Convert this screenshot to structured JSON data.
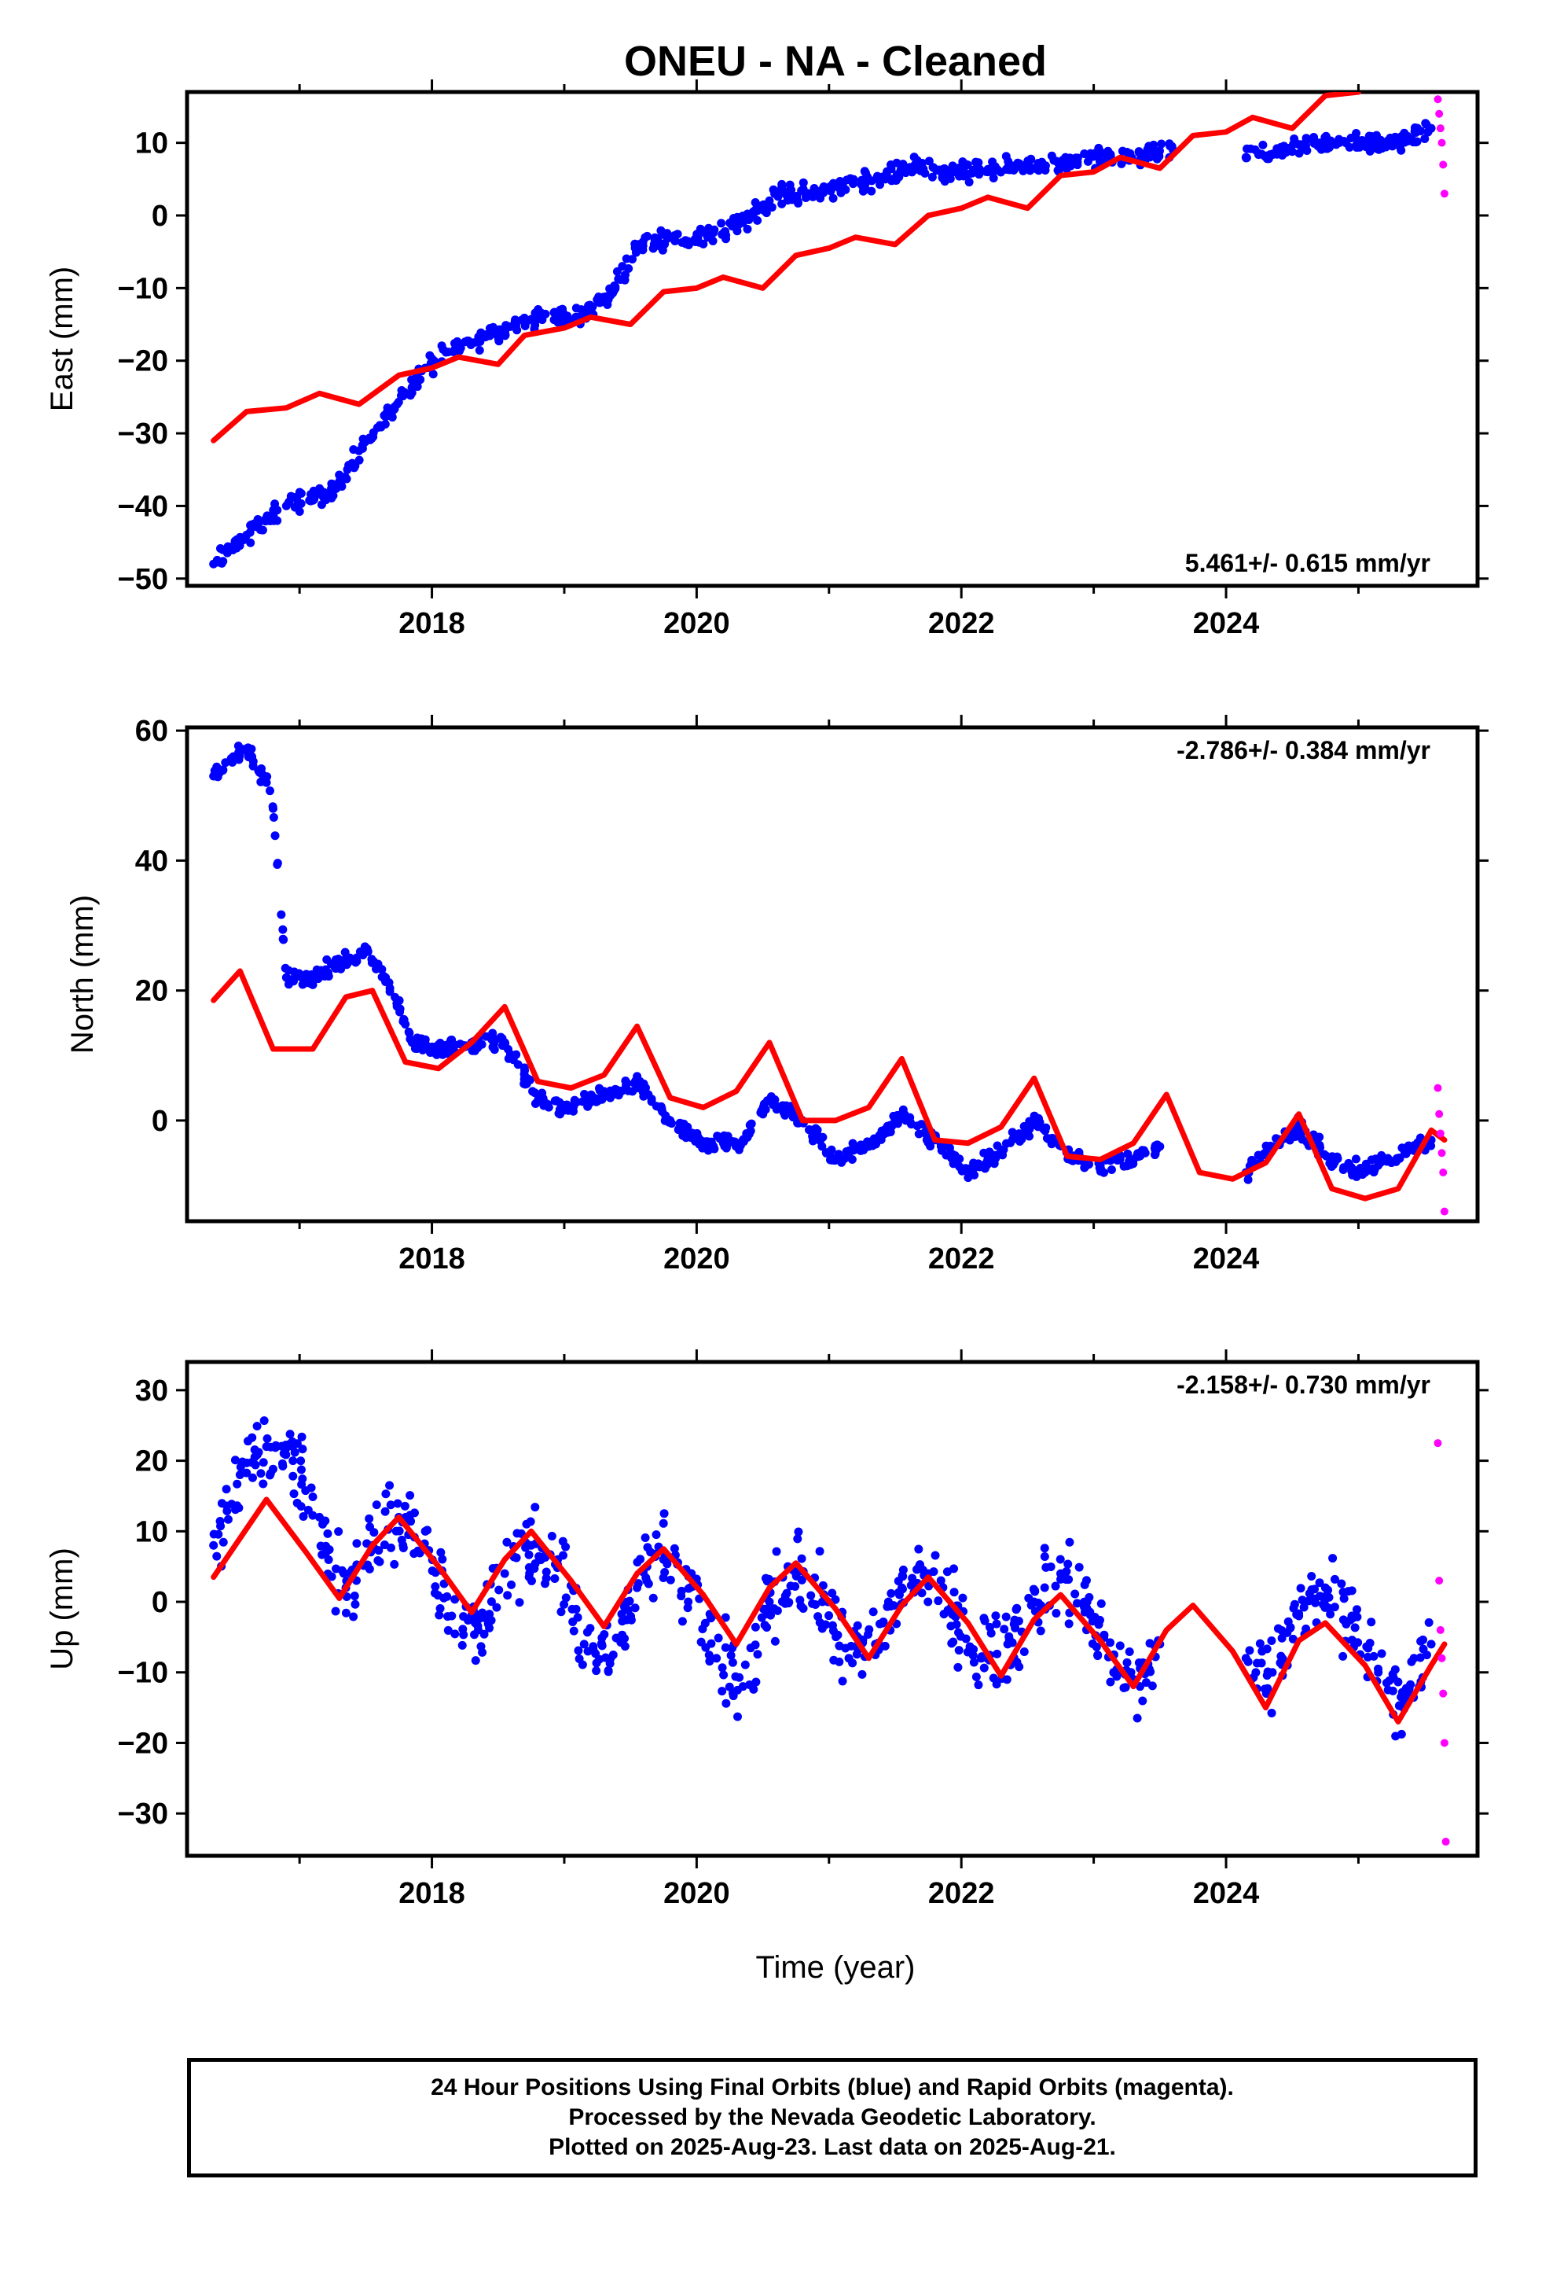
{
  "title": "ONEU  - NA - Cleaned",
  "xlabel": "Time (year)",
  "x_ticks": [
    2018,
    2020,
    2022,
    2024
  ],
  "x_range": [
    2016.15,
    2025.9
  ],
  "colors": {
    "final": "#0000ff",
    "rapid": "#ff00ff",
    "model": "#ff0000",
    "frame": "#000000"
  },
  "footer": {
    "line1": "24 Hour Positions Using Final Orbits (blue) and Rapid Orbits (magenta).",
    "line2": "Processed by the Nevada Geodetic Laboratory.",
    "line3": "Plotted on 2025-Aug-23. Last data on 2025-Aug-21."
  },
  "chart_data": [
    {
      "type": "scatter",
      "component": "east",
      "ylabel": "East (mm)",
      "rate": "5.461+/- 0.615 mm/yr",
      "rate_position": "bottom-right",
      "xlim": [
        2016.15,
        2025.9
      ],
      "ylim": [
        -51,
        17
      ],
      "yticks": [
        -50,
        -40,
        -30,
        -20,
        -10,
        0,
        10
      ],
      "series": [
        {
          "kind": "final",
          "color": "#0000ff",
          "x": [
            2016.35,
            2016.6,
            2016.9,
            2017.25,
            2017.5,
            2017.7,
            2017.95,
            2018.2,
            2018.5,
            2018.8,
            2019.1,
            2019.35,
            2019.55,
            2019.8,
            2020.1,
            2020.35,
            2020.6,
            2020.85,
            2021.1,
            2021.4,
            2021.65,
            2021.9,
            2022.2,
            2022.5,
            2022.8,
            2023.1,
            2023.4,
            2023.6,
            2024.15,
            2024.45,
            2024.7,
            2025.0,
            2025.3,
            2025.55
          ],
          "y": [
            -48,
            -44,
            -40,
            -38,
            -31,
            -27,
            -21,
            -18,
            -16,
            -14,
            -14,
            -11,
            -4,
            -3,
            -3,
            -1,
            3,
            3,
            4,
            5,
            7,
            6,
            6,
            7,
            7,
            8,
            8,
            9,
            8,
            9,
            10,
            10,
            10,
            12
          ]
        },
        {
          "kind": "rapid",
          "color": "#ff00ff",
          "x": [
            2025.6,
            2025.61,
            2025.62,
            2025.63,
            2025.64,
            2025.65
          ],
          "y": [
            16,
            14,
            12,
            10,
            7,
            3
          ]
        },
        {
          "kind": "model",
          "color": "#ff0000",
          "line": true,
          "x": [
            2016.35,
            2016.6,
            2016.9,
            2017.15,
            2017.45,
            2017.75,
            2018.0,
            2018.2,
            2018.5,
            2018.7,
            2019.0,
            2019.2,
            2019.5,
            2019.75,
            2020.0,
            2020.2,
            2020.5,
            2020.75,
            2021.0,
            2021.2,
            2021.5,
            2021.75,
            2022.0,
            2022.2,
            2022.5,
            2022.75,
            2023.0,
            2023.2,
            2023.5,
            2023.75,
            2024.0,
            2024.2,
            2024.5,
            2024.75,
            2025.0
          ],
          "y": [
            -31,
            -27,
            -26.5,
            -24.5,
            -26,
            -22,
            -21,
            -19.5,
            -20.5,
            -16.5,
            -15.5,
            -14,
            -15,
            -10.5,
            -10,
            -8.5,
            -10,
            -5.5,
            -4.5,
            -3,
            -4,
            0,
            1,
            2.5,
            1,
            5.5,
            6,
            8,
            6.5,
            11,
            11.5,
            13.5,
            12,
            16.5,
            17
          ]
        }
      ]
    },
    {
      "type": "scatter",
      "component": "north",
      "ylabel": "North (mm)",
      "rate": "-2.786+/- 0.384 mm/yr",
      "rate_position": "top-right",
      "xlim": [
        2016.15,
        2025.9
      ],
      "ylim": [
        -15.5,
        60.5
      ],
      "yticks": [
        0,
        20,
        40,
        60
      ],
      "series": [
        {
          "kind": "final",
          "color": "#0000ff",
          "x": [
            2016.35,
            2016.5,
            2016.6,
            2016.75,
            2016.8,
            2016.9,
            2017.1,
            2017.3,
            2017.5,
            2017.65,
            2017.85,
            2018.05,
            2018.3,
            2018.55,
            2018.8,
            2019.0,
            2019.3,
            2019.55,
            2019.8,
            2020.1,
            2020.35,
            2020.55,
            2020.8,
            2021.05,
            2021.3,
            2021.55,
            2021.8,
            2022.05,
            2022.3,
            2022.55,
            2022.8,
            2023.05,
            2023.3,
            2023.5,
            2024.15,
            2024.35,
            2024.55,
            2024.8,
            2025.05,
            2025.35,
            2025.55
          ],
          "y": [
            53,
            56,
            57,
            52,
            48,
            22,
            22,
            24,
            26,
            22,
            12,
            11,
            12,
            12,
            3,
            2,
            4,
            6,
            0,
            -4,
            -3,
            3,
            0,
            -6,
            -4,
            1,
            -3,
            -8,
            -5,
            0,
            -5,
            -7,
            -6,
            -4,
            -8,
            -4,
            -1,
            -6,
            -8,
            -5,
            -3
          ]
        },
        {
          "kind": "rapid",
          "color": "#ff00ff",
          "x": [
            2025.6,
            2025.61,
            2025.62,
            2025.63,
            2025.64,
            2025.65
          ],
          "y": [
            5,
            1,
            -2,
            -5,
            -8,
            -14
          ]
        },
        {
          "kind": "model",
          "color": "#ff0000",
          "line": true,
          "x": [
            2016.35,
            2016.55,
            2016.8,
            2017.1,
            2017.35,
            2017.55,
            2017.8,
            2018.05,
            2018.3,
            2018.55,
            2018.8,
            2019.05,
            2019.3,
            2019.55,
            2019.8,
            2020.05,
            2020.3,
            2020.55,
            2020.8,
            2021.05,
            2021.3,
            2021.55,
            2021.8,
            2022.05,
            2022.3,
            2022.55,
            2022.8,
            2023.05,
            2023.3,
            2023.55,
            2023.8,
            2024.05,
            2024.3,
            2024.55,
            2024.8,
            2025.05,
            2025.3,
            2025.55,
            2025.65
          ],
          "y": [
            18.5,
            23,
            11,
            11,
            19,
            20,
            9,
            8,
            12,
            17.5,
            6,
            5,
            7,
            14.5,
            3.5,
            2,
            4.5,
            12,
            0,
            0,
            2,
            9.5,
            -3,
            -3.5,
            -1,
            6.5,
            -5.5,
            -6,
            -3.5,
            4,
            -8,
            -9,
            -6.5,
            1,
            -10.5,
            -12,
            -10.5,
            -1.5,
            -3
          ]
        }
      ]
    },
    {
      "type": "scatter",
      "component": "up",
      "ylabel": "Up (mm)",
      "rate": "-2.158+/- 0.730 mm/yr",
      "rate_position": "top-right",
      "xlim": [
        2016.15,
        2025.9
      ],
      "ylim": [
        -36,
        34
      ],
      "yticks": [
        -30,
        -20,
        -10,
        0,
        10,
        20,
        30
      ],
      "series": [
        {
          "kind": "final",
          "color": "#0000ff",
          "x": [
            2016.35,
            2016.55,
            2016.75,
            2016.95,
            2017.15,
            2017.35,
            2017.55,
            2017.75,
            2017.95,
            2018.15,
            2018.35,
            2018.55,
            2018.75,
            2018.95,
            2019.15,
            2019.35,
            2019.55,
            2019.75,
            2019.95,
            2020.15,
            2020.35,
            2020.55,
            2020.75,
            2020.95,
            2021.15,
            2021.35,
            2021.55,
            2021.75,
            2021.95,
            2022.15,
            2022.35,
            2022.55,
            2022.75,
            2022.95,
            2023.15,
            2023.35,
            2023.5,
            2024.15,
            2024.35,
            2024.55,
            2024.75,
            2024.95,
            2025.15,
            2025.35,
            2025.55
          ],
          "y": [
            8,
            18,
            22,
            20,
            12,
            2,
            8,
            12,
            10,
            -2,
            -4,
            4,
            8,
            6,
            -6,
            -8,
            2,
            6,
            2,
            -8,
            -12,
            0,
            4,
            0,
            -8,
            -6,
            2,
            4,
            -2,
            -8,
            -6,
            0,
            4,
            0,
            -10,
            -12,
            -6,
            -8,
            -10,
            -2,
            2,
            -2,
            -10,
            -14,
            -6
          ]
        },
        {
          "kind": "rapid",
          "color": "#ff00ff",
          "x": [
            2025.6,
            2025.61,
            2025.62,
            2025.63,
            2025.64,
            2025.65,
            2025.66
          ],
          "y": [
            22.5,
            3,
            -4,
            -8,
            -13,
            -20,
            -34
          ]
        },
        {
          "kind": "model",
          "color": "#ff0000",
          "line": true,
          "x": [
            2016.35,
            2016.75,
            2017.05,
            2017.3,
            2017.55,
            2017.75,
            2018.05,
            2018.3,
            2018.55,
            2018.75,
            2019.05,
            2019.3,
            2019.55,
            2019.75,
            2020.05,
            2020.3,
            2020.55,
            2020.75,
            2021.05,
            2021.3,
            2021.55,
            2021.75,
            2022.05,
            2022.3,
            2022.55,
            2022.75,
            2023.05,
            2023.3,
            2023.55,
            2023.75,
            2024.05,
            2024.3,
            2024.55,
            2024.75,
            2025.05,
            2025.3,
            2025.55,
            2025.65
          ],
          "y": [
            3.5,
            14.5,
            7,
            0.5,
            8,
            12,
            5,
            -1.5,
            6,
            10,
            3,
            -3.5,
            4,
            7.5,
            1,
            -6,
            2,
            5.5,
            -1,
            -8,
            -0.5,
            3.5,
            -3,
            -10.5,
            -2.5,
            1,
            -5.5,
            -12,
            -4,
            -0.5,
            -7,
            -15,
            -5.5,
            -3,
            -9,
            -17,
            -9,
            -6
          ]
        }
      ]
    }
  ]
}
